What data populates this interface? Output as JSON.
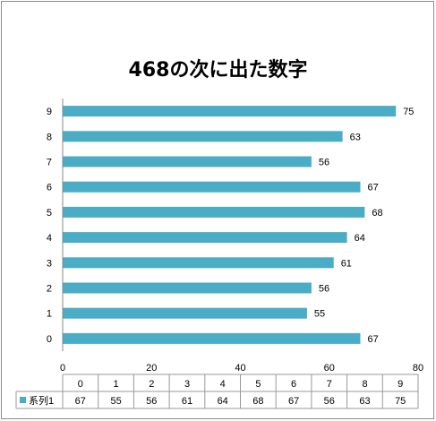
{
  "chart_data": {
    "type": "bar",
    "orientation": "horizontal",
    "title": "468の次に出た数字",
    "categories": [
      "0",
      "1",
      "2",
      "3",
      "4",
      "5",
      "6",
      "7",
      "8",
      "9"
    ],
    "series": [
      {
        "name": "系列1",
        "values": [
          67,
          55,
          56,
          61,
          64,
          68,
          67,
          56,
          63,
          75
        ]
      }
    ],
    "xlim": [
      0,
      80
    ],
    "x_ticks": [
      0,
      20,
      40,
      60,
      80
    ],
    "data_table": true,
    "legend": "data-table",
    "bar_color": "#4bacc6",
    "grid": false
  }
}
